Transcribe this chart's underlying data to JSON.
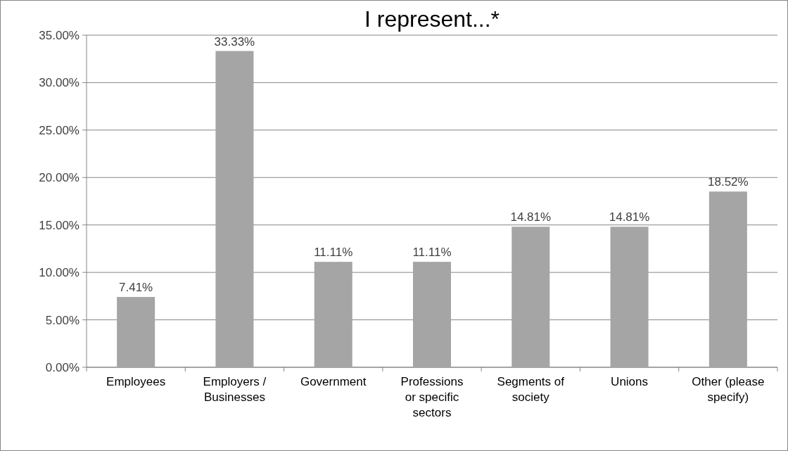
{
  "chart_data": {
    "type": "bar",
    "title": "I represent...*",
    "categories": [
      "Employees",
      "Employers / Businesses",
      "Government",
      "Professions or specific sectors",
      "Segments of society",
      "Unions",
      "Other (please specify)"
    ],
    "values": [
      7.41,
      33.33,
      11.11,
      11.11,
      14.81,
      14.81,
      18.52
    ],
    "value_labels": [
      "7.41%",
      "33.33%",
      "11.11%",
      "11.11%",
      "14.81%",
      "14.81%",
      "18.52%"
    ],
    "color": "#a5a5a5",
    "ylim": [
      0,
      35
    ],
    "yticks": [
      {
        "value": 0,
        "label": "0.00%"
      },
      {
        "value": 5,
        "label": "5.00%"
      },
      {
        "value": 10,
        "label": "10.00%"
      },
      {
        "value": 15,
        "label": "15.00%"
      },
      {
        "value": 20,
        "label": "20.00%"
      },
      {
        "value": 25,
        "label": "25.00%"
      },
      {
        "value": 30,
        "label": "30.00%"
      },
      {
        "value": 35,
        "label": "35.00%"
      }
    ],
    "grid": "y"
  }
}
